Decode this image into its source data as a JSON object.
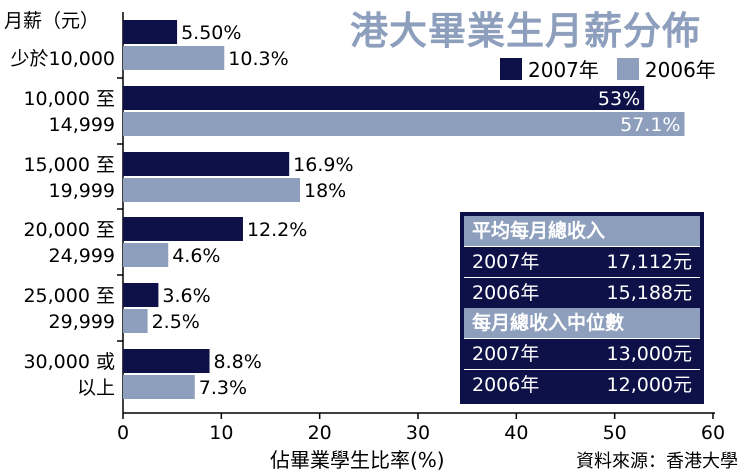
{
  "title": "港大畢業生月薪分佈",
  "unit_label": "月薪（元）",
  "legend": [
    {
      "label": "2007年",
      "color": "#0e1148"
    },
    {
      "label": "2006年",
      "color": "#8d9fbd"
    }
  ],
  "source": "資料來源：香港大學",
  "chart_data": {
    "type": "bar",
    "orientation": "horizontal",
    "xlabel": "佔畢業學生比率(%)",
    "xlim": [
      0,
      60
    ],
    "xticks": [
      0,
      10,
      20,
      30,
      40,
      50,
      60
    ],
    "categories": [
      [
        "少於10,000"
      ],
      [
        "10,000 至",
        "14,999"
      ],
      [
        "15,000 至",
        "19,999"
      ],
      [
        "20,000 至",
        "24,999"
      ],
      [
        "25,000 至",
        "29,999"
      ],
      [
        "30,000 或",
        "以上"
      ]
    ],
    "series": [
      {
        "name": "2007年",
        "color": "#0e1148",
        "values": [
          5.5,
          53,
          16.9,
          12.2,
          3.6,
          8.8
        ],
        "labels": [
          "5.50%",
          "53%",
          "16.9%",
          "12.2%",
          "3.6%",
          "8.8%"
        ]
      },
      {
        "name": "2006年",
        "color": "#8d9fbd",
        "values": [
          10.3,
          57.1,
          18,
          4.6,
          2.5,
          7.3
        ],
        "labels": [
          "10.3%",
          "57.1%",
          "18%",
          "4.6%",
          "2.5%",
          "7.3%"
        ]
      }
    ]
  },
  "summary": {
    "mean_header": "平均每月總收入",
    "mean_rows": [
      {
        "year": "2007年",
        "value": "17,112元"
      },
      {
        "year": "2006年",
        "value": "15,188元"
      }
    ],
    "median_header": "每月總收入中位數",
    "median_rows": [
      {
        "year": "2007年",
        "value": "13,000元"
      },
      {
        "year": "2006年",
        "value": "12,000元"
      }
    ]
  }
}
